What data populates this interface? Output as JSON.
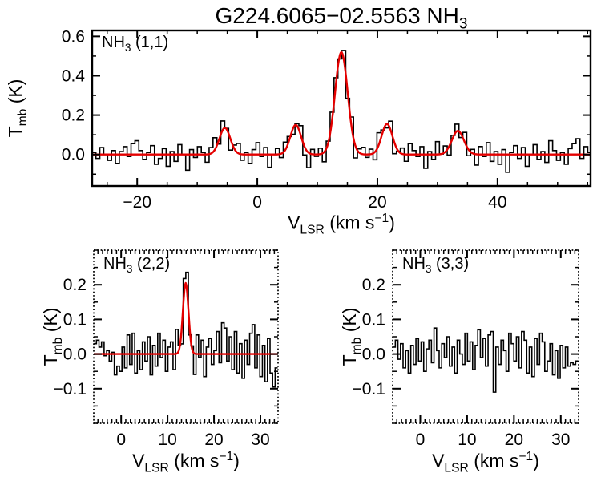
{
  "title": {
    "main": "G224.6065−02.5563 NH",
    "sub": "3"
  },
  "colors": {
    "data": "#000000",
    "fit": "#e40000",
    "background": "#ffffff",
    "frame": "#000000"
  },
  "axis_labels": {
    "y_pre": "T",
    "y_sub": "mb",
    "y_post": " (K)",
    "x_pre": "V",
    "x_sub": "LSR",
    "x_mid": " (km s",
    "x_sup": "−1",
    "x_post": ")"
  },
  "chart_data": [
    {
      "id": "nh3_11",
      "type": "line",
      "label": {
        "main": "NH",
        "sub": "3",
        "post": " (1,1)"
      },
      "xlabel": "V_LSR (km s−1)",
      "ylabel": "T_mb (K)",
      "xlim": [
        -27.5,
        55.5
      ],
      "ylim": [
        -0.16,
        0.63
      ],
      "xticks": {
        "values": [
          -20,
          0,
          20,
          40
        ],
        "labels": [
          "−20",
          "0",
          "20",
          "40"
        ],
        "minor_step": 5
      },
      "yticks": {
        "values": [
          0.0,
          0.2,
          0.4,
          0.6
        ],
        "labels": [
          "0.0",
          "0.2",
          "0.4",
          "0.6"
        ],
        "minor_step": 0.1
      },
      "frame": "solid",
      "channels": {
        "start": -27.2,
        "step": 0.65
      },
      "noise": [
        0.01,
        -0.02,
        0.035,
        0.0,
        -0.03,
        0.02,
        -0.045,
        0.015,
        0.04,
        -0.01,
        0.055,
        0.07,
        0.02,
        -0.025,
        0.01,
        0.045,
        -0.05,
        -0.02,
        0.03,
        -0.06,
        0.015,
        -0.035,
        0.05,
        0.0,
        -0.08,
        0.025,
        -0.015,
        0.04,
        0.01,
        -0.04,
        0.03,
        0.06,
        -0.02,
        0.045,
        0.005,
        -0.055,
        0.02,
        0.05,
        -0.03,
        0.01,
        -0.045,
        0.025,
        0.06,
        -0.01,
        0.035,
        -0.065,
        0.0,
        0.03,
        -0.02,
        0.04,
        0.02,
        -0.03,
        0.01,
        0.05,
        -0.04,
        -0.075,
        0.025,
        -0.01,
        0.03,
        -0.05,
        0.01,
        0.04,
        0.03,
        -0.02,
        0.045,
        -0.03,
        0.05,
        -0.06,
        0.02,
        0.035,
        -0.015,
        0.025,
        -0.04,
        0.06,
        0.01,
        -0.02,
        0.045,
        -0.055,
        0.0,
        0.03,
        -0.035,
        0.055,
        0.02,
        -0.01,
        0.04,
        -0.07,
        0.015,
        -0.025,
        0.065,
        0.0,
        0.03,
        -0.045,
        0.01,
        0.035,
        -0.02,
        0.05,
        -0.03,
        0.02,
        -0.055,
        0.04,
        -0.01,
        0.06,
        -0.035,
        0.015,
        -0.05,
        0.025,
        -0.09,
        0.01,
        0.045,
        -0.02,
        0.035,
        -0.06,
        0.0,
        0.05,
        -0.025,
        0.015,
        -0.04,
        0.07,
        0.02,
        -0.03,
        0.01,
        -0.05,
        0.03,
        0.055,
        0.08,
        -0.02,
        0.04,
        0.01
      ],
      "fit": true,
      "gaussians": [
        {
          "center": -5.4,
          "amp": 0.135,
          "sigma": 0.9
        },
        {
          "center": 6.4,
          "amp": 0.15,
          "sigma": 0.9
        },
        {
          "center": 14.0,
          "amp": 0.52,
          "sigma": 1.05
        },
        {
          "center": 21.6,
          "amp": 0.155,
          "sigma": 0.9
        },
        {
          "center": 33.4,
          "amp": 0.12,
          "sigma": 1.0
        }
      ]
    },
    {
      "id": "nh3_22",
      "type": "line",
      "label": {
        "main": "NH",
        "sub": "3",
        "post": " (2,2)"
      },
      "xlabel": "V_LSR (km s−1)",
      "ylabel": "T_mb (K)",
      "xlim": [
        -5.9,
        33.8
      ],
      "ylim": [
        -0.2,
        0.3
      ],
      "xticks": {
        "values": [
          0,
          10,
          20,
          30
        ],
        "labels": [
          "0",
          "10",
          "20",
          "30"
        ],
        "minor_step": 1
      },
      "yticks": {
        "values": [
          -0.1,
          0.0,
          0.1,
          0.2
        ],
        "labels": [
          "−0.1",
          "0.0",
          "0.1",
          "0.2"
        ],
        "minor_step": 0.05
      },
      "frame": "dotted",
      "channels": {
        "start": -5.6,
        "step": 0.55
      },
      "noise": [
        0.03,
        0.04,
        0.02,
        0.035,
        -0.005,
        0.01,
        -0.02,
        0.005,
        -0.06,
        -0.035,
        -0.05,
        0.02,
        -0.04,
        0.055,
        -0.03,
        0.06,
        -0.055,
        0.01,
        -0.045,
        0.035,
        -0.02,
        0.05,
        -0.06,
        0.025,
        -0.035,
        0.06,
        -0.01,
        0.04,
        -0.05,
        0.02,
        0.035,
        -0.045,
        0.07,
        0.01,
        -0.055,
        0.03,
        0.055,
        -0.02,
        0.01,
        -0.06,
        0.055,
        -0.01,
        0.04,
        -0.065,
        0.02,
        0.045,
        -0.03,
        0.01,
        0.065,
        -0.025,
        0.09,
        0.075,
        -0.02,
        0.05,
        -0.045,
        0.065,
        -0.055,
        0.03,
        -0.07,
        0.04,
        -0.03,
        0.06,
        0.085,
        -0.04,
        0.055,
        -0.065,
        0.025,
        -0.08,
        0.045,
        -0.055,
        -0.095,
        -0.04
      ],
      "fit": true,
      "gaussians": [
        {
          "center": 13.9,
          "amp": 0.205,
          "sigma": 0.6
        }
      ]
    },
    {
      "id": "nh3_33",
      "type": "line",
      "label": {
        "main": "NH",
        "sub": "3",
        "post": " (3,3)"
      },
      "xlabel": "V_LSR (km s−1)",
      "ylabel": "T_mb (K)",
      "xlim": [
        -5.9,
        33.8
      ],
      "ylim": [
        -0.2,
        0.3
      ],
      "xticks": {
        "values": [
          0,
          10,
          20,
          30
        ],
        "labels": [
          "0",
          "10",
          "20",
          "30"
        ],
        "minor_step": 1
      },
      "yticks": {
        "values": [
          -0.1,
          0.0,
          0.1,
          0.2
        ],
        "labels": [
          "−0.1",
          "0.0",
          "0.1",
          "0.2"
        ],
        "minor_step": 0.05
      },
      "frame": "dotted",
      "channels": {
        "start": -5.6,
        "step": 0.55
      },
      "noise": [
        0.02,
        0.04,
        -0.015,
        0.03,
        -0.04,
        0.01,
        -0.055,
        0.025,
        -0.03,
        0.045,
        -0.02,
        0.035,
        -0.05,
        0.015,
        0.04,
        -0.025,
        0.075,
        0.01,
        -0.04,
        0.03,
        -0.01,
        0.05,
        -0.035,
        0.02,
        -0.055,
        0.04,
        0.0,
        -0.03,
        0.06,
        -0.02,
        0.035,
        -0.045,
        0.025,
        0.07,
        -0.01,
        0.045,
        -0.035,
        0.055,
        0.065,
        -0.11,
        0.02,
        -0.03,
        0.04,
        0.01,
        -0.05,
        0.06,
        0.03,
        -0.02,
        0.05,
        -0.04,
        0.065,
        0.04,
        -0.055,
        0.02,
        -0.065,
        0.045,
        -0.03,
        0.06,
        0.035,
        -0.05,
        -0.02,
        0.03,
        -0.06,
        0.01,
        -0.07,
        0.025,
        -0.04,
        0.02,
        -0.035,
        -0.025,
        -0.03,
        -0.02
      ],
      "fit": false,
      "gaussians": []
    }
  ]
}
